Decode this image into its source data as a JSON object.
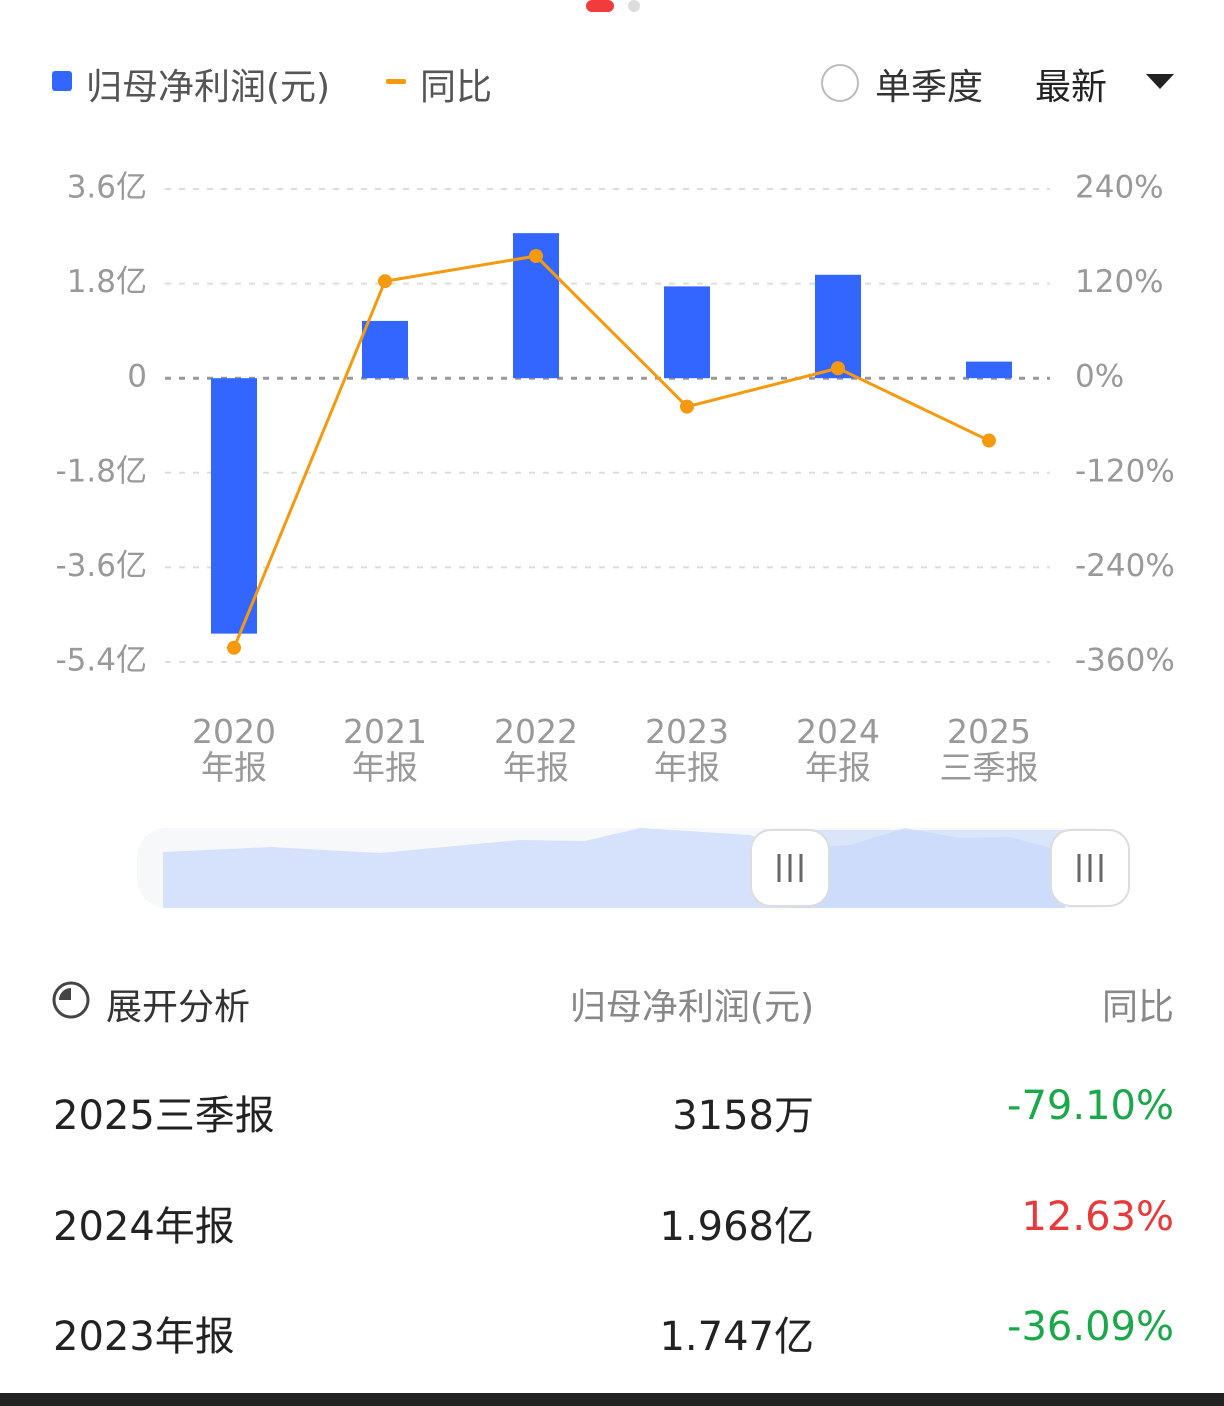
{
  "chart_data": {
    "type": "bar-line",
    "categories": [
      "2020\n年报",
      "2021\n年报",
      "2022\n年报",
      "2023\n年报",
      "2024\n年报",
      "2025\n三季报"
    ],
    "series": [
      {
        "name": "归母净利润(元)",
        "type": "bar",
        "color": "#3366ff",
        "values": [
          -4.86,
          1.09,
          2.76,
          1.747,
          1.968,
          0.3158
        ]
      },
      {
        "name": "同比",
        "type": "line",
        "axis": "y2",
        "color": "#f59a0e",
        "values": [
          -342,
          123,
          155,
          -36.09,
          12.63,
          -79.1
        ]
      }
    ],
    "ylim": [
      -5.4,
      3.6
    ],
    "yticks": [
      {
        "value": 3.6,
        "label": "3.6亿"
      },
      {
        "value": 1.8,
        "label": "1.8亿"
      },
      0,
      {
        "value": -1.8,
        "label": "-1.8亿"
      },
      {
        "value": -3.6,
        "label": "-3.6亿"
      },
      {
        "value": -5.4,
        "label": "-5.4亿"
      }
    ],
    "y2lim": [
      -360,
      240
    ],
    "y2ticks": [
      {
        "value": 240,
        "label": "240%"
      },
      {
        "value": 120,
        "label": "120%"
      },
      {
        "value": 0,
        "label": "0%"
      },
      {
        "value": -120,
        "label": "-120%"
      },
      {
        "value": -240,
        "label": "-240%"
      },
      {
        "value": -360,
        "label": "-360%"
      }
    ],
    "grid": true
  },
  "controls": {
    "single_quarter": "单季度",
    "period": "最新"
  },
  "table": {
    "header": [
      "展开分析",
      "归母净利润(元)",
      "同比"
    ],
    "rows": [
      [
        "2025三季报",
        "3158万",
        "-79.10%"
      ],
      [
        "2024年报",
        "1.968亿",
        "12.63%"
      ],
      [
        "2023年报",
        "1.747亿",
        "-36.09%"
      ]
    ]
  }
}
